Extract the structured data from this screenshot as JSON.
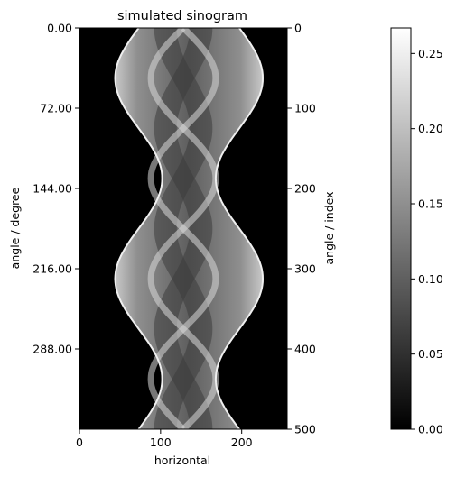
{
  "chart_data": {
    "type": "heatmap",
    "title": "simulated sinogram",
    "xlabel": "horizontal",
    "ylabel_left": "angle / degree",
    "ylabel_right": "angle / index",
    "colormap": "gray",
    "colorscale_range": [
      0.0,
      0.267
    ],
    "x_range": [
      0,
      256
    ],
    "x_ticks": [
      "0",
      "100",
      "200"
    ],
    "x_tick_values": [
      0,
      100,
      200
    ],
    "y_left_range": [
      0,
      360
    ],
    "y_left_ticks": [
      "0.00",
      "72.00",
      "144.00",
      "216.00",
      "288.00"
    ],
    "y_left_tick_values": [
      0,
      72,
      144,
      216,
      288
    ],
    "y_right_range": [
      0,
      500
    ],
    "y_right_ticks": [
      "0",
      "100",
      "200",
      "300",
      "400",
      "500"
    ],
    "y_right_tick_values": [
      0,
      100,
      200,
      300,
      400,
      500
    ],
    "colorbar_ticks": [
      "0.00",
      "0.05",
      "0.10",
      "0.15",
      "0.20",
      "0.25"
    ],
    "colorbar_tick_values": [
      0.0,
      0.05,
      0.1,
      0.15,
      0.2,
      0.25
    ],
    "object_center_x": 128,
    "object_left_edge_range": [
      44,
      102
    ],
    "object_right_edge_range": [
      168,
      226
    ],
    "object_edge_period_degrees": 180
  }
}
